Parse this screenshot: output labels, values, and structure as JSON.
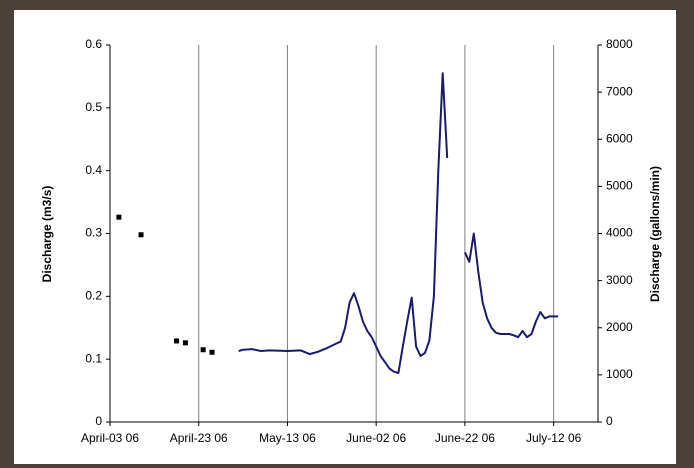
{
  "chart_data": {
    "type": "line",
    "y_label": "Discharge (m3/s)",
    "y2_label": "Discharge (gallons/min)",
    "xlim": [
      "2006-04-03",
      "2006-07-22"
    ],
    "xticks": [
      {
        "value": "2006-04-03",
        "label": "April-03 06"
      },
      {
        "value": "2006-04-23",
        "label": "April-23 06"
      },
      {
        "value": "2006-05-13",
        "label": "May-13 06"
      },
      {
        "value": "2006-06-02",
        "label": "June-02 06"
      },
      {
        "value": "2006-06-22",
        "label": "June-22 06"
      },
      {
        "value": "2006-07-12",
        "label": "July-12 06"
      }
    ],
    "ylim": [
      0,
      0.6
    ],
    "yticks": [
      0,
      0.1,
      0.2,
      0.3,
      0.4,
      0.5,
      0.6
    ],
    "y2lim": [
      0,
      8000
    ],
    "y2ticks": [
      0,
      1000,
      2000,
      3000,
      4000,
      5000,
      6000,
      7000,
      8000
    ],
    "grid": "x",
    "series": [
      {
        "type": "scatter",
        "color": "#000000",
        "x": [
          "2006-04-05",
          "2006-04-10",
          "2006-04-18",
          "2006-04-20",
          "2006-04-24",
          "2006-04-26"
        ],
        "values": [
          0.326,
          0.298,
          0.129,
          0.126,
          0.115,
          0.111
        ]
      },
      {
        "type": "line",
        "color": "#1a1a6e",
        "x": [
          "2006-05-02",
          "2006-05-03",
          "2006-05-05",
          "2006-05-07",
          "2006-05-09",
          "2006-05-13",
          "2006-05-16",
          "2006-05-18",
          "2006-05-20",
          "2006-05-22",
          "2006-05-24",
          "2006-05-25",
          "2006-05-26",
          "2006-05-27",
          "2006-05-28",
          "2006-05-29",
          "2006-05-30",
          "2006-05-31",
          "2006-06-01",
          "2006-06-02",
          "2006-06-03",
          "2006-06-04",
          "2006-06-05",
          "2006-06-06",
          "2006-06-07",
          "2006-06-08",
          "2006-06-09",
          "2006-06-10",
          "2006-06-11",
          "2006-06-12",
          "2006-06-13",
          "2006-06-14",
          "2006-06-15",
          "2006-06-16",
          "2006-06-17",
          "2006-06-18",
          "2006-06-20",
          "2006-06-22",
          "2006-06-23",
          "2006-06-24",
          "2006-06-25",
          "2006-06-26",
          "2006-06-27",
          "2006-06-28",
          "2006-06-29",
          "2006-06-30",
          "2006-07-01",
          "2006-07-02",
          "2006-07-03",
          "2006-07-04",
          "2006-07-05",
          "2006-07-06",
          "2006-07-07",
          "2006-07-08",
          "2006-07-09",
          "2006-07-10",
          "2006-07-11",
          "2006-07-13"
        ],
        "values": [
          0.113,
          0.115,
          0.116,
          0.113,
          0.114,
          0.113,
          0.114,
          0.108,
          0.112,
          0.118,
          0.125,
          0.128,
          0.15,
          0.19,
          0.205,
          0.185,
          0.16,
          0.145,
          0.135,
          0.12,
          0.105,
          0.095,
          0.085,
          0.08,
          0.078,
          0.12,
          0.16,
          0.198,
          0.12,
          0.105,
          0.11,
          0.13,
          0.2,
          0.4,
          0.555,
          0.42,
          null,
          0.27,
          0.255,
          0.3,
          0.24,
          0.19,
          0.165,
          0.15,
          0.142,
          0.14,
          0.14,
          0.14,
          0.138,
          0.135,
          0.145,
          0.135,
          0.14,
          0.16,
          0.175,
          0.165,
          0.168,
          0.168
        ]
      }
    ]
  }
}
